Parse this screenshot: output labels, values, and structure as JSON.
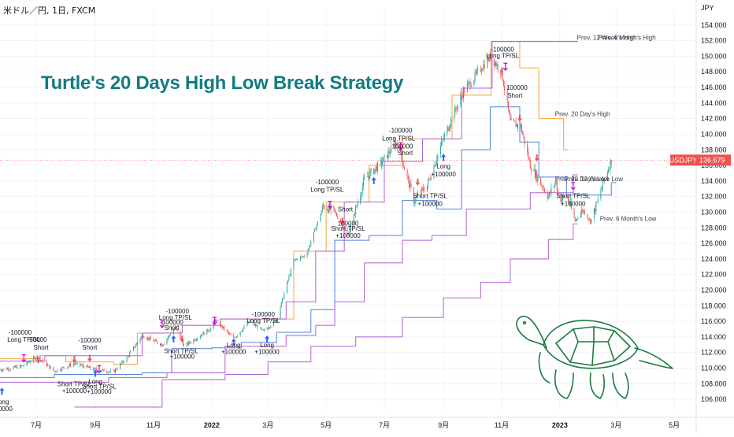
{
  "header": {
    "symbol_text": "米ドル／円, 1日, FXCM",
    "title": "Turtle's 20 Days High Low Break Strategy"
  },
  "chart_data": {
    "type": "candlestick",
    "ylim": [
      104.5,
      156
    ],
    "y_ticks": [
      106,
      108,
      110,
      112,
      114,
      116,
      118,
      120,
      122,
      124,
      126,
      128,
      130,
      132,
      134,
      136,
      138,
      140,
      142,
      144,
      146,
      148,
      150,
      152,
      154
    ],
    "y_unit": "JPY",
    "x_ticks": [
      "7月",
      "9月",
      "11月",
      "2022",
      "3月",
      "5月",
      "7月",
      "9月",
      "11月",
      "2023",
      "3月",
      "5月"
    ],
    "x_tick_dates": [
      "2021-07-01",
      "2021-09-01",
      "2021-11-01",
      "2022-01-01",
      "2022-03-01",
      "2022-05-01",
      "2022-07-01",
      "2022-09-01",
      "2022-11-01",
      "2023-01-01",
      "2023-03-01",
      "2023-05-01"
    ],
    "colors": {
      "up": "#26a69a",
      "down": "#ef5350",
      "high20": "#f7a43a",
      "low20": "#4f84d9",
      "week12": "#b160d6",
      "month6": "#b160d6",
      "title": "#137b80",
      "signal_long": "#2962ff",
      "signal_short": "#ef5350",
      "exit": "#cc00cc"
    },
    "price_path": [
      [
        "2021-05-24",
        109.8
      ],
      [
        "2021-06-15",
        110.2
      ],
      [
        "2021-07-02",
        111.5
      ],
      [
        "2021-07-20",
        109.6
      ],
      [
        "2021-08-10",
        110.6
      ],
      [
        "2021-09-01",
        109.8
      ],
      [
        "2021-09-20",
        109.5
      ],
      [
        "2021-10-05",
        111.5
      ],
      [
        "2021-10-20",
        114.2
      ],
      [
        "2021-11-10",
        113.0
      ],
      [
        "2021-11-24",
        115.2
      ],
      [
        "2021-12-03",
        112.8
      ],
      [
        "2021-12-31",
        115.1
      ],
      [
        "2022-01-04",
        116.2
      ],
      [
        "2022-01-24",
        113.8
      ],
      [
        "2022-02-10",
        116.0
      ],
      [
        "2022-02-24",
        114.7
      ],
      [
        "2022-03-10",
        116.2
      ],
      [
        "2022-03-28",
        123.8
      ],
      [
        "2022-04-10",
        124.5
      ],
      [
        "2022-04-28",
        130.8
      ],
      [
        "2022-05-10",
        130.0
      ],
      [
        "2022-05-24",
        127.0
      ],
      [
        "2022-06-10",
        134.2
      ],
      [
        "2022-06-29",
        136.5
      ],
      [
        "2022-07-14",
        139.0
      ],
      [
        "2022-08-01",
        131.5
      ],
      [
        "2022-08-15",
        133.5
      ],
      [
        "2022-09-01",
        139.5
      ],
      [
        "2022-09-22",
        145.5
      ],
      [
        "2022-10-20",
        150.0
      ],
      [
        "2022-11-01",
        148.0
      ],
      [
        "2022-11-10",
        141.5
      ],
      [
        "2022-11-21",
        141.0
      ],
      [
        "2022-12-01",
        136.0
      ],
      [
        "2022-12-20",
        132.0
      ],
      [
        "2022-12-28",
        134.0
      ],
      [
        "2022-12-31",
        131.5
      ],
      [
        "2023-01-08",
        132.2
      ],
      [
        "2023-01-17",
        128.9
      ],
      [
        "2023-01-25",
        130.3
      ],
      [
        "2023-02-02",
        128.8
      ],
      [
        "2023-02-10",
        131.5
      ],
      [
        "2023-02-16",
        134.0
      ],
      [
        "2023-02-24",
        136.7
      ]
    ],
    "series": [
      {
        "name": "Prev. 20 Day's High",
        "points": [
          [
            "2021-05-24",
            111.2
          ],
          [
            "2021-07-05",
            111.6
          ],
          [
            "2021-08-01",
            110.8
          ],
          [
            "2021-09-20",
            110.5
          ],
          [
            "2021-10-15",
            114.5
          ],
          [
            "2021-11-20",
            115.5
          ],
          [
            "2022-01-10",
            116.3
          ],
          [
            "2022-03-01",
            116.3
          ],
          [
            "2022-03-28",
            125.0
          ],
          [
            "2022-05-01",
            131.3
          ],
          [
            "2022-06-15",
            136.0
          ],
          [
            "2022-07-20",
            139.4
          ],
          [
            "2022-09-10",
            145.0
          ],
          [
            "2022-10-21",
            151.9
          ],
          [
            "2022-11-20",
            148.5
          ],
          [
            "2022-12-10",
            142.0
          ],
          [
            "2023-01-05",
            138.0
          ]
        ]
      },
      {
        "name": "Prev. 20 Day's Low",
        "points": [
          [
            "2021-05-24",
            108.8
          ],
          [
            "2021-07-20",
            109.2
          ],
          [
            "2021-09-10",
            109.2
          ],
          [
            "2021-10-20",
            109.4
          ],
          [
            "2021-11-20",
            112.5
          ],
          [
            "2022-01-01",
            112.6
          ],
          [
            "2022-02-01",
            113.3
          ],
          [
            "2022-03-10",
            114.6
          ],
          [
            "2022-04-15",
            117.5
          ],
          [
            "2022-05-10",
            126.4
          ],
          [
            "2022-06-15",
            127.0
          ],
          [
            "2022-07-20",
            131.5
          ],
          [
            "2022-08-25",
            130.4
          ],
          [
            "2022-09-20",
            138.0
          ],
          [
            "2022-10-20",
            143.5
          ],
          [
            "2022-11-20",
            139.0
          ],
          [
            "2022-12-10",
            134.5
          ],
          [
            "2023-01-08",
            132.2
          ],
          [
            "2023-02-24",
            133.8
          ]
        ]
      },
      {
        "name": "Prev. 12 Week's High",
        "points": [
          [
            "2021-05-24",
            110.9
          ],
          [
            "2021-07-10",
            111.6
          ],
          [
            "2021-10-20",
            114.5
          ],
          [
            "2021-12-01",
            115.5
          ],
          [
            "2022-01-10",
            116.3
          ],
          [
            "2022-03-20",
            118.5
          ],
          [
            "2022-04-20",
            125.0
          ],
          [
            "2022-05-20",
            131.3
          ],
          [
            "2022-07-01",
            136.5
          ],
          [
            "2022-08-10",
            139.4
          ],
          [
            "2022-09-20",
            145.9
          ],
          [
            "2022-10-22",
            151.9
          ],
          [
            "2023-01-15",
            151.9
          ]
        ]
      },
      {
        "name": "Prev. 12 Week's Low",
        "points": [
          [
            "2021-05-24",
            108.2
          ],
          [
            "2021-09-15",
            108.8
          ],
          [
            "2021-11-15",
            109.4
          ],
          [
            "2022-01-15",
            112.8
          ],
          [
            "2022-03-20",
            114.2
          ],
          [
            "2022-04-20",
            115.5
          ],
          [
            "2022-05-10",
            118.5
          ],
          [
            "2022-06-10",
            123.5
          ],
          [
            "2022-07-20",
            126.4
          ],
          [
            "2022-08-20",
            127.0
          ],
          [
            "2022-09-25",
            130.4
          ],
          [
            "2022-12-01",
            132.5
          ],
          [
            "2023-01-15",
            134.8
          ]
        ]
      },
      {
        "name": "Prev. 6 Month's High",
        "points": [
          [
            "2022-10-22",
            151.9
          ],
          [
            "2023-01-15",
            151.9
          ]
        ]
      },
      {
        "name": "Prev. 6 Month's Low",
        "points": [
          [
            "2021-08-10",
            105.0
          ],
          [
            "2021-11-10",
            108.5
          ],
          [
            "2022-01-15",
            109.2
          ],
          [
            "2022-03-01",
            110.8
          ],
          [
            "2022-04-15",
            112.8
          ],
          [
            "2022-06-01",
            114.0
          ],
          [
            "2022-07-20",
            116.5
          ],
          [
            "2022-09-01",
            119.0
          ],
          [
            "2022-10-10",
            121.0
          ],
          [
            "2022-11-10",
            124.0
          ],
          [
            "2022-12-20",
            126.5
          ],
          [
            "2023-01-15",
            128.5
          ]
        ]
      }
    ],
    "right_labels": [
      {
        "text": "Prev. 12 Week's High",
        "date": "2023-01-19",
        "y": 152.1
      },
      {
        "text": "Prev. 6 Month's High",
        "date": "2023-02-10",
        "y": 152.1
      },
      {
        "text": "Prev. 20 Day's High",
        "date": "2022-12-27",
        "y": 142.3
      },
      {
        "text": "Prev. 20 Day's Low",
        "date": "2022-12-27",
        "y": 134.0
      },
      {
        "text": "Prev. 12 Week's Low",
        "date": "2023-01-06",
        "y": 134.0
      },
      {
        "text": "Prev. 6 Month's Low",
        "date": "2023-02-12",
        "y": 128.9
      }
    ],
    "annotations": [
      {
        "date": "2021-06-14",
        "y": 114.3,
        "text": "-100000"
      },
      {
        "date": "2021-06-18",
        "y": 113.4,
        "text": "Long TP/SL"
      },
      {
        "date": "2021-07-03",
        "y": 113.4,
        "text": "50000"
      },
      {
        "date": "2021-07-06",
        "y": 112.4,
        "text": "Short"
      },
      {
        "date": "2021-05-26",
        "y": 104.5,
        "text": "100000"
      },
      {
        "date": "2021-05-26",
        "y": 105.4,
        "text": "Long"
      },
      {
        "date": "2021-08-10",
        "y": 107.7,
        "text": "Short TP/SL"
      },
      {
        "date": "2021-08-10",
        "y": 106.8,
        "text": "+100000"
      },
      {
        "date": "2021-08-26",
        "y": 113.3,
        "text": "-100000"
      },
      {
        "date": "2021-08-26",
        "y": 112.4,
        "text": "Short"
      },
      {
        "date": "2021-09-01",
        "y": 108.0,
        "text": "Long"
      },
      {
        "date": "2021-09-05",
        "y": 107.4,
        "text": "Short TP/SL"
      },
      {
        "date": "2021-09-05",
        "y": 106.7,
        "text": "+100000"
      },
      {
        "date": "2021-11-26",
        "y": 117.0,
        "text": "-100000"
      },
      {
        "date": "2021-11-24",
        "y": 116.2,
        "text": "Long TP/SL"
      },
      {
        "date": "2021-11-20",
        "y": 115.6,
        "text": "-100000"
      },
      {
        "date": "2021-11-20",
        "y": 114.9,
        "text": "Short"
      },
      {
        "date": "2021-11-30",
        "y": 111.9,
        "text": "Short TP/SL"
      },
      {
        "date": "2021-12-01",
        "y": 111.2,
        "text": "+100000"
      },
      {
        "date": "2022-01-24",
        "y": 112.7,
        "text": "Long"
      },
      {
        "date": "2022-01-24",
        "y": 111.8,
        "text": "+100000"
      },
      {
        "date": "2022-02-24",
        "y": 116.6,
        "text": "-100000"
      },
      {
        "date": "2022-02-24",
        "y": 115.8,
        "text": "Long TP/SL"
      },
      {
        "date": "2022-02-28",
        "y": 112.7,
        "text": "Long"
      },
      {
        "date": "2022-02-28",
        "y": 111.8,
        "text": "+100000"
      },
      {
        "date": "2022-05-02",
        "y": 133.6,
        "text": "-100000"
      },
      {
        "date": "2022-05-02",
        "y": 132.6,
        "text": "Long TP/SL"
      },
      {
        "date": "2022-05-21",
        "y": 130.1,
        "text": "Short"
      },
      {
        "date": "2022-05-24",
        "y": 128.3,
        "text": "100000"
      },
      {
        "date": "2022-05-24",
        "y": 127.6,
        "text": "Short TP/SL"
      },
      {
        "date": "2022-05-24",
        "y": 126.7,
        "text": "+100000"
      },
      {
        "date": "2022-07-18",
        "y": 140.2,
        "text": "-100000"
      },
      {
        "date": "2022-07-16",
        "y": 139.2,
        "text": "Long TP/SL"
      },
      {
        "date": "2022-07-20",
        "y": 138.2,
        "text": "100000"
      },
      {
        "date": "2022-07-23",
        "y": 137.3,
        "text": "Short"
      },
      {
        "date": "2022-08-18",
        "y": 131.8,
        "text": "Short TP/SL"
      },
      {
        "date": "2022-08-18",
        "y": 130.8,
        "text": "+100000"
      },
      {
        "date": "2022-09-01",
        "y": 135.6,
        "text": "Long"
      },
      {
        "date": "2022-09-01",
        "y": 134.6,
        "text": "+100000"
      },
      {
        "date": "2022-11-02",
        "y": 150.6,
        "text": "-100000"
      },
      {
        "date": "2022-11-02",
        "y": 149.8,
        "text": "Long TP/SL"
      },
      {
        "date": "2022-11-17",
        "y": 145.7,
        "text": "100000"
      },
      {
        "date": "2022-11-15",
        "y": 144.7,
        "text": "Short"
      },
      {
        "date": "2023-01-15",
        "y": 131.8,
        "text": "Short TP/SL"
      },
      {
        "date": "2023-01-15",
        "y": 130.8,
        "text": "+100000"
      }
    ],
    "last_price": {
      "symbol": "USDJPY",
      "value": "136.679",
      "y": 136.679
    },
    "decoration": "turtle-drawing"
  }
}
